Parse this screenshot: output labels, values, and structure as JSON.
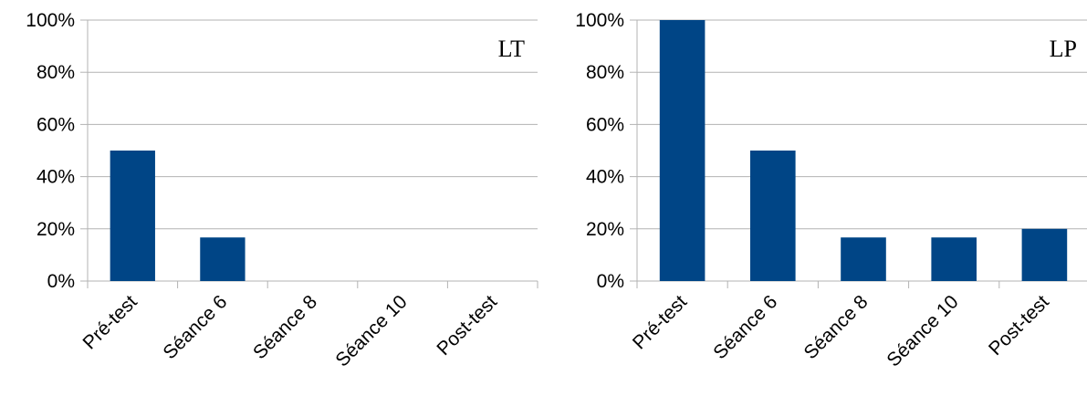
{
  "colors": {
    "bar": "#004586",
    "grid": "#b3b3b3",
    "axis": "#b3b3b3"
  },
  "chart_data": [
    {
      "type": "bar",
      "panel_label": "LT",
      "categories": [
        "Pré-test",
        "Séance 6",
        "Séance 8",
        "Séance 10",
        "Post-test"
      ],
      "values": [
        50,
        16.7,
        0,
        0,
        0
      ],
      "ylim": [
        0,
        100
      ],
      "yticks": [
        "0%",
        "20%",
        "40%",
        "60%",
        "80%",
        "100%"
      ],
      "grid": true,
      "legend": "none"
    },
    {
      "type": "bar",
      "panel_label": "LP",
      "categories": [
        "Pré-test",
        "Séance 6",
        "Séance 8",
        "Séance 10",
        "Post-test"
      ],
      "values": [
        100,
        50,
        16.7,
        16.7,
        20
      ],
      "ylim": [
        0,
        100
      ],
      "yticks": [
        "0%",
        "20%",
        "40%",
        "60%",
        "80%",
        "100%"
      ],
      "grid": true,
      "legend": "none"
    }
  ]
}
